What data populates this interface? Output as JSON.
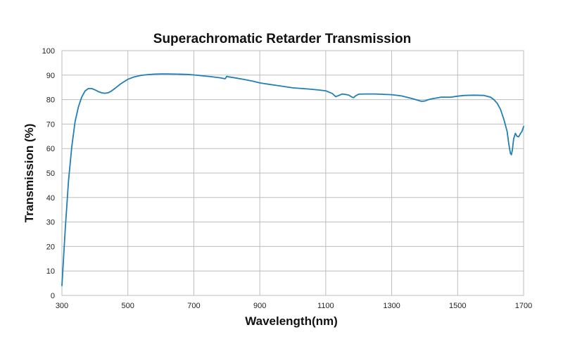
{
  "chart_data": {
    "type": "line",
    "title": "Superachromatic Retarder Transmission",
    "xlabel": "Wavelength(nm)",
    "ylabel": "Transmission (%)",
    "xlim": [
      300,
      1700
    ],
    "ylim": [
      0,
      100
    ],
    "x_ticks": [
      300,
      500,
      700,
      900,
      1100,
      1300,
      1500,
      1700
    ],
    "y_ticks": [
      0,
      10,
      20,
      30,
      40,
      50,
      60,
      70,
      80,
      90,
      100
    ],
    "grid": true,
    "legend": "none",
    "line_color": "#1f7fb6",
    "series": [
      {
        "x": [
          300,
          310,
          320,
          330,
          340,
          350,
          360,
          370,
          380,
          390,
          400,
          410,
          420,
          430,
          440,
          450,
          460,
          480,
          500,
          520,
          540,
          560,
          580,
          600,
          620,
          650,
          680,
          700,
          720,
          750,
          780,
          795,
          799,
          800,
          805,
          820,
          850,
          880,
          900,
          950,
          1000,
          1050,
          1080,
          1100,
          1120,
          1130,
          1140,
          1150,
          1160,
          1170,
          1180,
          1185,
          1190,
          1200,
          1220,
          1250,
          1300,
          1330,
          1360,
          1380,
          1390,
          1400,
          1410,
          1420,
          1450,
          1480,
          1500,
          1520,
          1550,
          1580,
          1600,
          1610,
          1620,
          1630,
          1640,
          1650,
          1655,
          1660,
          1663,
          1666,
          1670,
          1675,
          1680,
          1685,
          1690,
          1695,
          1700
        ],
        "y": [
          4,
          27,
          47,
          61,
          71,
          77,
          81,
          83.5,
          84.5,
          84.5,
          84,
          83.3,
          82.8,
          82.6,
          82.8,
          83.5,
          84.5,
          86.6,
          88.3,
          89.3,
          89.9,
          90.2,
          90.4,
          90.5,
          90.5,
          90.4,
          90.3,
          90.1,
          89.8,
          89.4,
          88.9,
          88.5,
          89.3,
          89.5,
          89.3,
          89.0,
          88.3,
          87.5,
          86.8,
          85.8,
          84.8,
          84.3,
          83.9,
          83.6,
          82.5,
          81.2,
          81.7,
          82.3,
          82.1,
          81.8,
          81.0,
          80.8,
          81.5,
          82.2,
          82.3,
          82.3,
          82.0,
          81.5,
          80.5,
          79.7,
          79.3,
          79.4,
          79.9,
          80.3,
          81.0,
          81.0,
          81.4,
          81.7,
          81.8,
          81.7,
          81.0,
          80.0,
          78.5,
          76.0,
          72.0,
          67.0,
          62.0,
          58.0,
          57.5,
          59.5,
          64.0,
          66.2,
          65.0,
          64.8,
          66.0,
          67.0,
          69.0
        ]
      }
    ]
  }
}
